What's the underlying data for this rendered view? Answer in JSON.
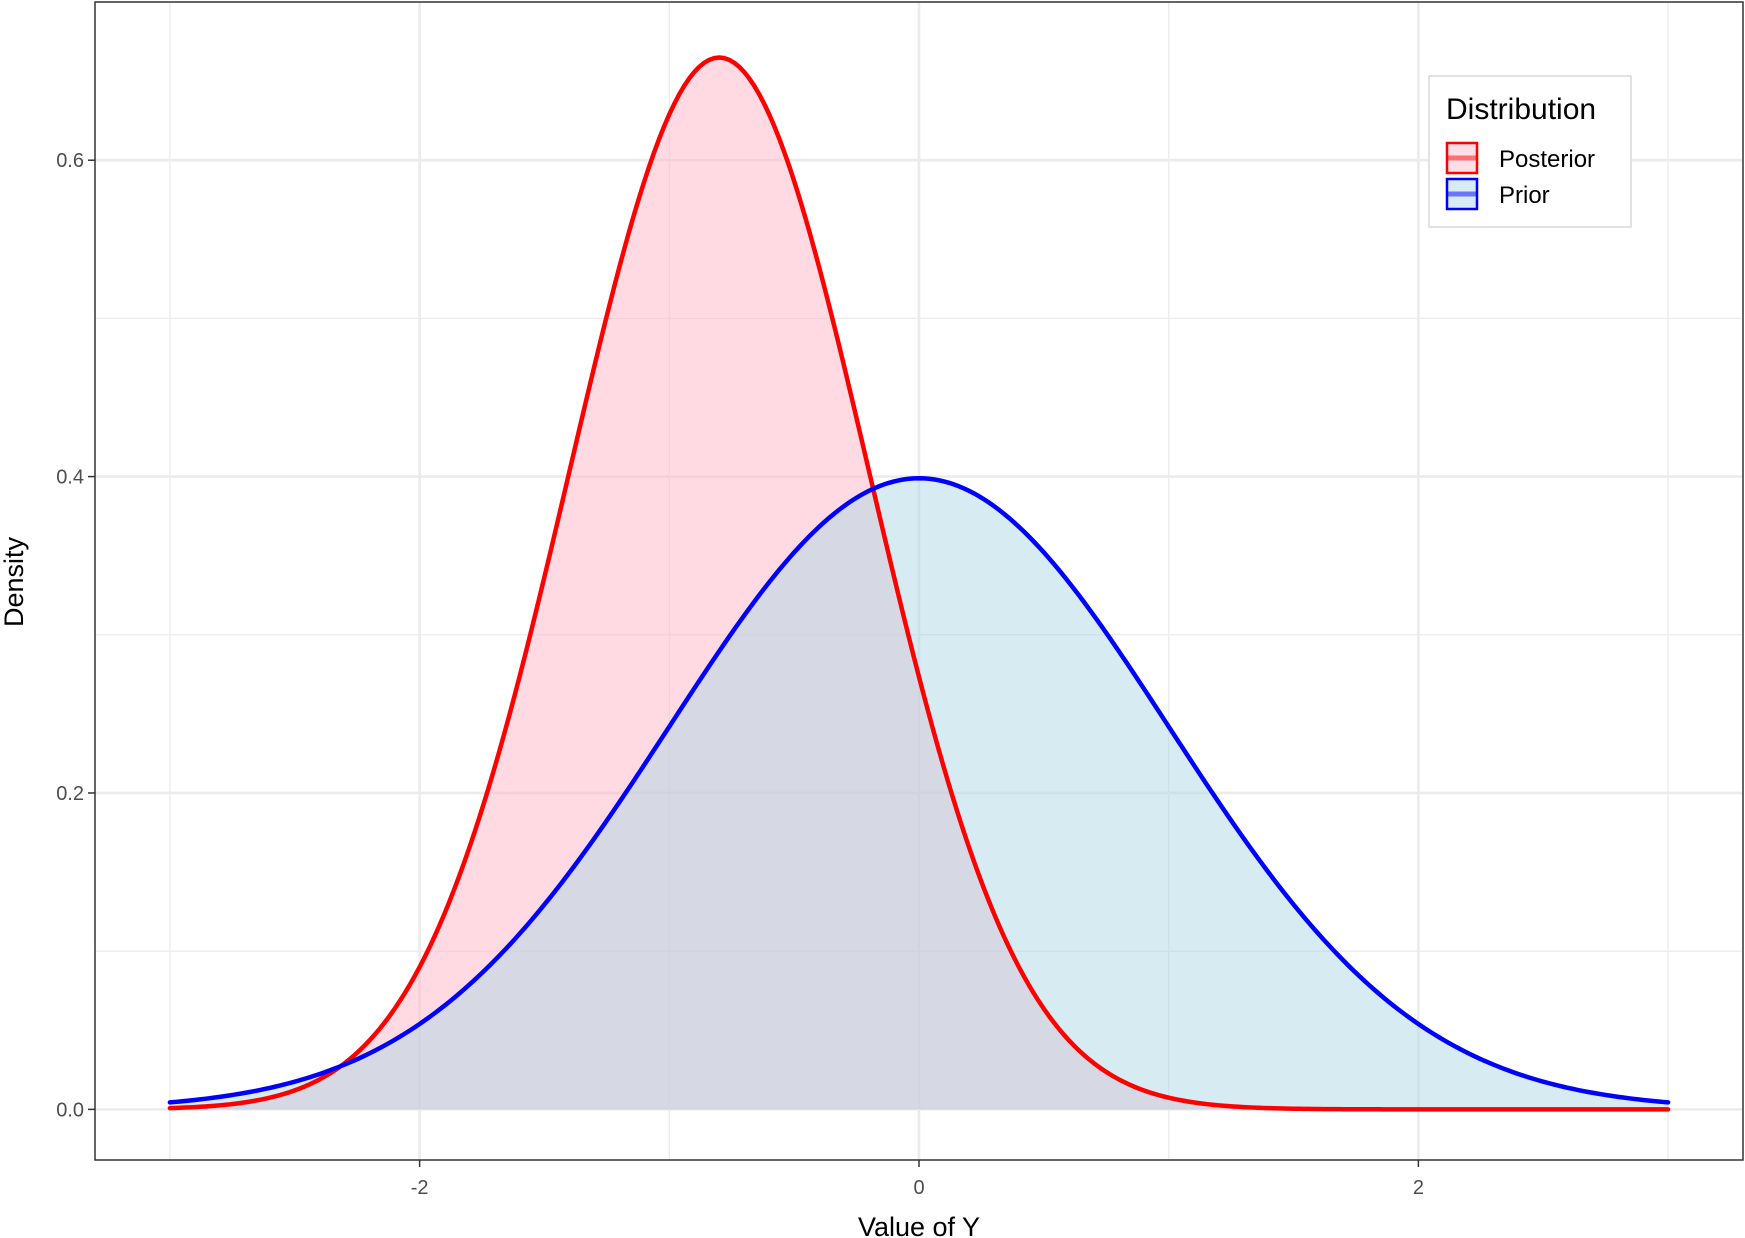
{
  "chart_data": {
    "type": "area",
    "title": "",
    "xlabel": "Value of Y",
    "ylabel": "Density",
    "xlim": [
      -3.3,
      3.3
    ],
    "ylim": [
      -0.032,
      0.7
    ],
    "x_ticks": [
      -2,
      0,
      2
    ],
    "x_tick_labels": [
      "-2",
      "0",
      "2"
    ],
    "y_ticks": [
      0.0,
      0.2,
      0.4,
      0.6
    ],
    "y_tick_labels": [
      "0.0",
      "0.2",
      "0.4",
      "0.6"
    ],
    "x_range": [
      -3,
      3
    ],
    "grid": true,
    "legend": {
      "title": "Distribution",
      "placement": "top-right",
      "entries": [
        "Posterior",
        "Prior"
      ]
    },
    "series": [
      {
        "name": "Posterior",
        "distribution": "normal",
        "mean": -0.8,
        "sd": 0.6,
        "peak_density": 0.665,
        "line_color": "#ff0000",
        "fill_color": "#ffb6c8"
      },
      {
        "name": "Prior",
        "distribution": "normal",
        "mean": 0,
        "sd": 1,
        "peak_density": 0.399,
        "line_color": "#0000ff",
        "fill_color": "#add8e6"
      }
    ]
  }
}
